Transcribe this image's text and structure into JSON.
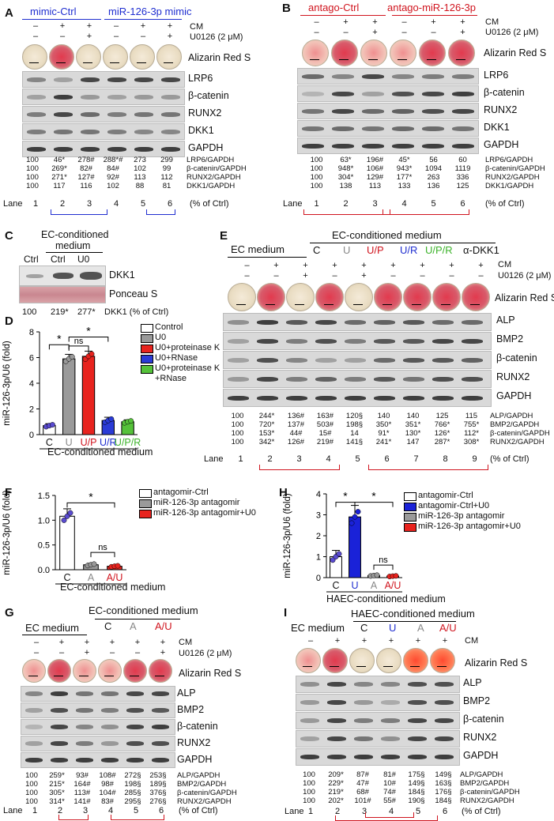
{
  "panelA": {
    "label": "A",
    "group1": "mimic-Ctrl",
    "group2": "miR-126-3p mimic",
    "cm_label": "CM",
    "u0_label": "U0126 (2 μM)",
    "cm_signs": [
      "–",
      "+",
      "+",
      "–",
      "+",
      "+"
    ],
    "u0_signs": [
      "–",
      "–",
      "+",
      "–",
      "–",
      "+"
    ],
    "stain": "Alizarin Red S",
    "blots": [
      "LRP6",
      "β-catenin",
      "RUNX2",
      "DKK1",
      "GAPDH"
    ],
    "quant": [
      {
        "vals": [
          "100",
          "46*",
          "278#",
          "288*#",
          "273",
          "299"
        ],
        "label": "LRP6/GAPDH"
      },
      {
        "vals": [
          "100",
          "269*",
          "82#",
          "84#",
          "102",
          "99"
        ],
        "label": "β-catenin/GAPDH"
      },
      {
        "vals": [
          "100",
          "271*",
          "127#",
          "92#",
          "113",
          "112"
        ],
        "label": "RUNX2/GAPDH"
      },
      {
        "vals": [
          "100",
          "117",
          "116",
          "102",
          "88",
          "81"
        ],
        "label": "DKK1/GAPDH"
      }
    ],
    "lane_word": "Lane",
    "lanes": [
      "1",
      "2",
      "3",
      "4",
      "5",
      "6"
    ],
    "pct": "(% of Ctrl)"
  },
  "panelB": {
    "label": "B",
    "group1": "antago-Ctrl",
    "group2": "antago-miR-126-3p",
    "cm_label": "CM",
    "u0_label": "U0126 (2 μM)",
    "cm_signs": [
      "–",
      "+",
      "+",
      "–",
      "+",
      "+"
    ],
    "u0_signs": [
      "–",
      "–",
      "+",
      "–",
      "–",
      "+"
    ],
    "stain": "Alizarin Red S",
    "blots": [
      "LRP6",
      "β-catenin",
      "RUNX2",
      "DKK1",
      "GAPDH"
    ],
    "quant": [
      {
        "vals": [
          "100",
          "63*",
          "196#",
          "45*",
          "56",
          "60"
        ],
        "label": "LRP6/GAPDH"
      },
      {
        "vals": [
          "100",
          "948*",
          "106#",
          "943*",
          "1094",
          "1119"
        ],
        "label": "β-catenin/GAPDH"
      },
      {
        "vals": [
          "100",
          "304*",
          "129#",
          "177*",
          "263",
          "336"
        ],
        "label": "RUNX2/GAPDH"
      },
      {
        "vals": [
          "100",
          "138",
          "113",
          "133",
          "136",
          "125"
        ],
        "label": "DKK1/GAPDH"
      }
    ],
    "lane_word": "Lane",
    "lanes": [
      "1",
      "2",
      "3",
      "4",
      "5",
      "6"
    ],
    "pct": "(% of Ctrl)"
  },
  "panelC": {
    "label": "C",
    "header1": "EC-conditioned",
    "header2": "medium",
    "cols": [
      "Ctrl",
      "U0"
    ],
    "ctrl": "Ctrl",
    "blot1": "DKK1",
    "blot2": "Ponceau S",
    "vals": [
      "100",
      "219*",
      "277*"
    ],
    "unit": "DKK1 (% of Ctrl)"
  },
  "panelD": {
    "label": "D",
    "ylabel": "miR-126-3p/U6 (fold)",
    "xlabel": "EC-conditioned medium",
    "legend": [
      "Control",
      "U0",
      "U0+proteinase K",
      "U0+RNase",
      "U0+proteinase K",
      "+RNase"
    ],
    "ns": "ns",
    "star": "*"
  },
  "chart_data": [
    {
      "type": "bar",
      "title": "",
      "categories": [
        "C",
        "U",
        "U/P",
        "U/R",
        "U/P/R"
      ],
      "values": [
        0.7,
        5.9,
        6.1,
        1.1,
        1.0
      ],
      "errors": [
        0.15,
        0.35,
        0.4,
        0.25,
        0.15
      ],
      "colors": [
        "#ffffff",
        "#9a9a9a",
        "#e8231e",
        "#2a3bd6",
        "#55c23a"
      ],
      "ylabel": "miR-126-3p/U6 (fold)",
      "xlabel": "EC-conditioned medium",
      "ylim": [
        0,
        8
      ],
      "yticks": [
        0,
        2,
        4,
        6,
        8
      ]
    },
    {
      "type": "bar",
      "title": "",
      "categories": [
        "C",
        "A",
        "A/U"
      ],
      "values": [
        1.08,
        0.1,
        0.07
      ],
      "errors": [
        0.15,
        0.03,
        0.02
      ],
      "colors": [
        "#ffffff",
        "#9a9a9a",
        "#e8231e"
      ],
      "ylabel": "miR-126-3p/U6 (fold)",
      "xlabel": "EC-conditioned medium",
      "ylim": [
        0,
        1.5
      ],
      "yticks": [
        0.0,
        0.5,
        1.0,
        1.5
      ]
    },
    {
      "type": "bar",
      "title": "",
      "categories": [
        "C",
        "U",
        "A",
        "A/U"
      ],
      "values": [
        1.0,
        2.9,
        0.1,
        0.07
      ],
      "errors": [
        0.3,
        0.55,
        0.04,
        0.03
      ],
      "colors": [
        "#ffffff",
        "#1a22d8",
        "#9a9a9a",
        "#e8231e"
      ],
      "ylabel": "miR-126-3p/U6 (fold)",
      "xlabel": "HAEC-conditioned medium",
      "ylim": [
        0,
        4
      ],
      "yticks": [
        0,
        1,
        2,
        3,
        4
      ]
    }
  ],
  "panelE": {
    "label": "E",
    "header_left": "EC medium",
    "header_right": "EC-conditioned medium",
    "groups": [
      "C",
      "U",
      "U/P",
      "U/R",
      "U/P/R",
      "α-DKK1"
    ],
    "group_colors": [
      "#111",
      "#888",
      "#d0141e",
      "#1f2ed0",
      "#3db32b",
      "#111"
    ],
    "cm_label": "CM",
    "u0_label": "U0126 (2 μM)",
    "cm_signs": [
      "–",
      "+",
      "+",
      "+",
      "+",
      "+",
      "+",
      "+",
      "+"
    ],
    "u0_signs": [
      "–",
      "–",
      "+",
      "–",
      "+",
      "–",
      "–",
      "–",
      "–"
    ],
    "stain": "Alizarin Red S",
    "blots": [
      "ALP",
      "BMP2",
      "β-catenin",
      "RUNX2",
      "GAPDH"
    ],
    "quant": [
      {
        "vals": [
          "100",
          "244*",
          "136#",
          "163#",
          "120§",
          "140",
          "140",
          "125",
          "115"
        ],
        "label": "ALP/GAPDH"
      },
      {
        "vals": [
          "100",
          "720*",
          "137#",
          "503#",
          "198§",
          "350*",
          "351*",
          "766*",
          "755*"
        ],
        "label": "BMP2/GAPDH"
      },
      {
        "vals": [
          "100",
          "153*",
          "44#",
          "15#",
          "14",
          "91*",
          "130*",
          "126*",
          "112*"
        ],
        "label": "β-catenin/GAPDH"
      },
      {
        "vals": [
          "100",
          "342*",
          "126#",
          "219#",
          "141§",
          "241*",
          "147",
          "287*",
          "308*"
        ],
        "label": "RUNX2/GAPDH"
      }
    ],
    "lane_word": "Lane",
    "lanes": [
      "1",
      "2",
      "3",
      "4",
      "5",
      "6",
      "7",
      "8",
      "9"
    ],
    "pct": "(% of Ctrl)"
  },
  "panelF": {
    "label": "F",
    "ylabel": "miR-126-3p/U6 (fold)",
    "xlabel": "EC-conditioned medium",
    "legend": [
      "antagomir-Ctrl",
      "miR-126-3p antagomir",
      "miR-126-3p antagomir+U0"
    ],
    "ns": "ns",
    "star": "*"
  },
  "panelH": {
    "label": "H",
    "ylabel": "miR-126-3p/U6 (fold)",
    "xlabel": "HAEC-conditioned medium",
    "legend": [
      "antagomir-Ctrl",
      "antagomir-Ctrl+U0",
      "miR-126-3p antagomir",
      "miR-126-3p antagomir+U0"
    ],
    "ns": "ns",
    "star": "*"
  },
  "panelG": {
    "label": "G",
    "header_left": "EC medium",
    "header_right": "EC-conditioned medium",
    "groups": [
      "C",
      "A",
      "A/U"
    ],
    "cm_label": "CM",
    "u0_label": "U0126 (2 μM)",
    "cm_signs": [
      "–",
      "+",
      "+",
      "+",
      "+",
      "+"
    ],
    "u0_signs": [
      "–",
      "–",
      "+",
      "–",
      "–",
      "+"
    ],
    "stain": "Alizarin Red S",
    "blots": [
      "ALP",
      "BMP2",
      "β-catenin",
      "RUNX2",
      "GAPDH"
    ],
    "quant": [
      {
        "vals": [
          "100",
          "259*",
          "93#",
          "108#",
          "272§",
          "253§"
        ],
        "label": "ALP/GAPDH"
      },
      {
        "vals": [
          "100",
          "215*",
          "164#",
          "98#",
          "198§",
          "189§"
        ],
        "label": "BMP2/GAPDH"
      },
      {
        "vals": [
          "100",
          "305*",
          "113#",
          "104#",
          "285§",
          "376§"
        ],
        "label": "β-catenin/GAPDH"
      },
      {
        "vals": [
          "100",
          "314*",
          "141#",
          "83#",
          "295§",
          "276§"
        ],
        "label": "RUNX2/GAPDH"
      }
    ],
    "lane_word": "Lane",
    "lanes": [
      "1",
      "2",
      "3",
      "4",
      "5",
      "6"
    ],
    "pct": "(% of Ctrl)"
  },
  "panelI": {
    "label": "I",
    "header_left": "EC medium",
    "header_right": "HAEC-conditioned medium",
    "groups": [
      "C",
      "U",
      "A",
      "A/U"
    ],
    "cm_label": "CM",
    "cm_signs": [
      "–",
      "+",
      "+",
      "+",
      "+",
      "+"
    ],
    "stain": "Alizarin Red S",
    "blots": [
      "ALP",
      "BMP2",
      "β-catenin",
      "RUNX2",
      "GAPDH"
    ],
    "quant": [
      {
        "vals": [
          "100",
          "209*",
          "87#",
          "81#",
          "175§",
          "149§"
        ],
        "label": "ALP/GAPDH"
      },
      {
        "vals": [
          "100",
          "229*",
          "47#",
          "10#",
          "149§",
          "163§"
        ],
        "label": "BMP2/GAPDH"
      },
      {
        "vals": [
          "100",
          "219*",
          "68#",
          "74#",
          "184§",
          "176§"
        ],
        "label": "β-catenin/GAPDH"
      },
      {
        "vals": [
          "100",
          "202*",
          "101#",
          "55#",
          "190§",
          "184§"
        ],
        "label": "RUNX2/GAPDH"
      }
    ],
    "lane_word": "Lane",
    "lanes": [
      "1",
      "2",
      "3",
      "4",
      "5",
      "6"
    ],
    "pct": "(% of Ctrl)"
  }
}
